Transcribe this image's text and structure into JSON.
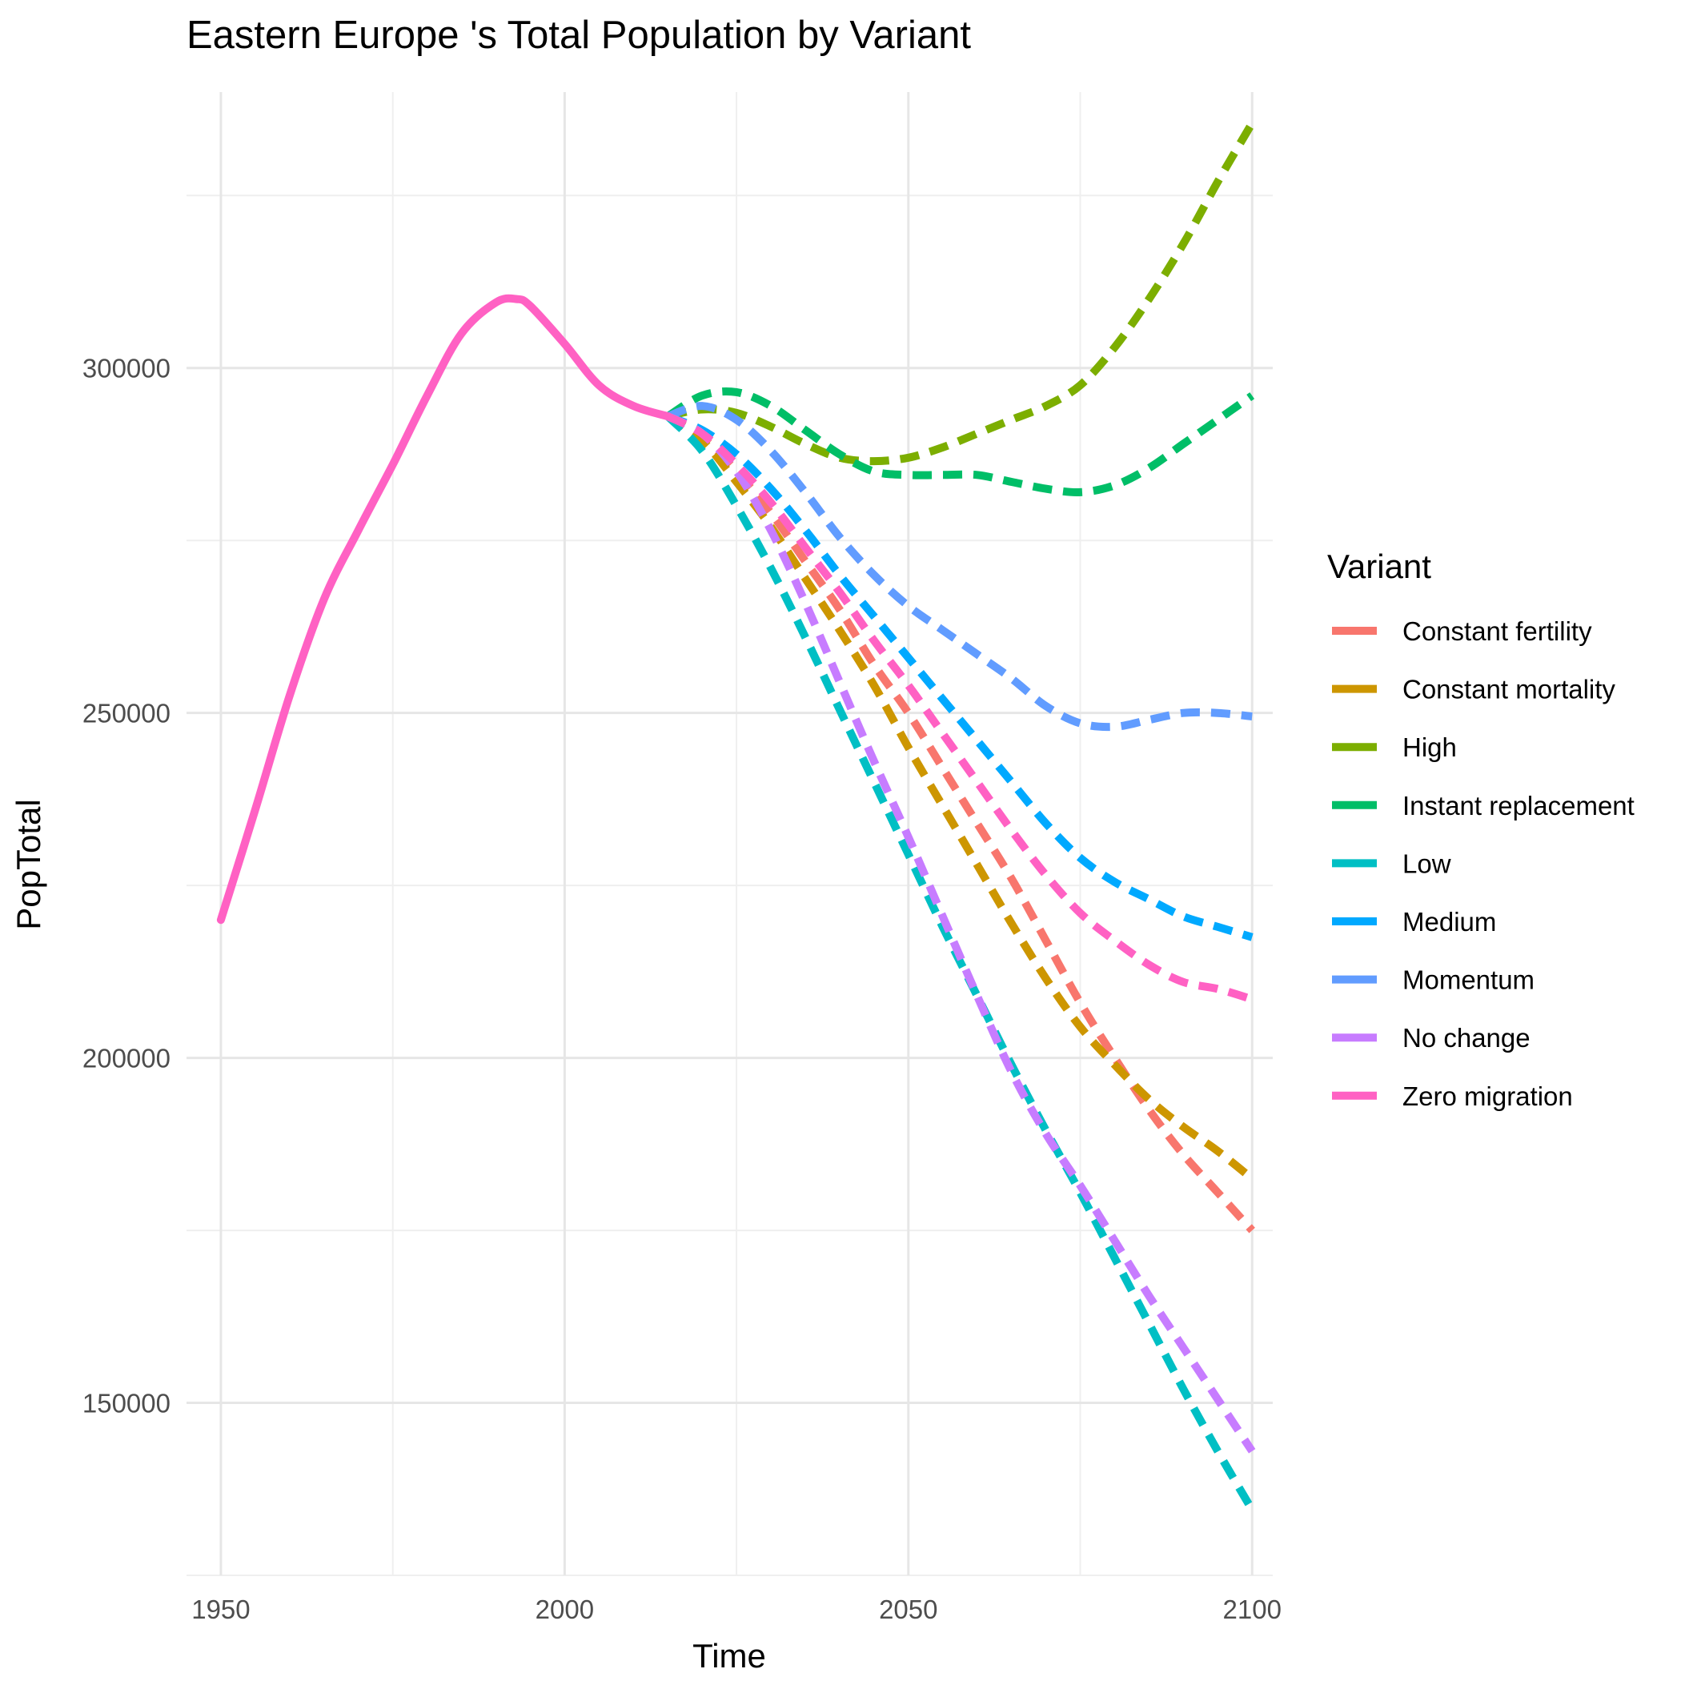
{
  "chart_data": {
    "type": "line",
    "title": "Eastern Europe 's Total Population by Variant",
    "xlabel": "Time",
    "ylabel": "PopTotal",
    "xlim": [
      1945,
      2103
    ],
    "ylim": [
      125000,
      340000
    ],
    "x_ticks": [
      1950,
      2000,
      2050,
      2100
    ],
    "x_tick_labels": [
      "1950",
      "2000",
      "2050",
      "2100"
    ],
    "y_ticks": [
      150000,
      200000,
      250000,
      300000
    ],
    "y_tick_labels": [
      "150000",
      "200000",
      "250000",
      "300000"
    ],
    "x_minor_ticks": [
      1975,
      2025,
      2075
    ],
    "y_minor_ticks": [
      125000,
      175000,
      225000,
      275000,
      325000
    ],
    "grid": true,
    "legend": {
      "title": "Variant",
      "position": "right"
    },
    "series": [
      {
        "name": "Constant fertility",
        "color": "#F8766D",
        "dash": "dashed",
        "x": [
          2015,
          2020,
          2025,
          2030,
          2035,
          2040,
          2045,
          2050,
          2055,
          2060,
          2065,
          2070,
          2075,
          2080,
          2085,
          2090,
          2095,
          2100
        ],
        "y": [
          293000,
          290000,
          285000,
          279000,
          272000,
          265000,
          257000,
          250000,
          242000,
          234000,
          226000,
          217000,
          208000,
          200000,
          192500,
          186000,
          180500,
          175000
        ]
      },
      {
        "name": "Constant mortality",
        "color": "#CD9600",
        "dash": "dashed",
        "x": [
          2015,
          2020,
          2025,
          2030,
          2035,
          2040,
          2045,
          2050,
          2055,
          2060,
          2065,
          2070,
          2075,
          2080,
          2085,
          2090,
          2095,
          2100
        ],
        "y": [
          293000,
          289500,
          283500,
          277000,
          269500,
          262000,
          254000,
          245000,
          236500,
          228000,
          219500,
          211500,
          204500,
          199000,
          194000,
          190000,
          186500,
          182500
        ]
      },
      {
        "name": "High",
        "color": "#7CAE00",
        "dash": "dashed",
        "x": [
          2015,
          2020,
          2025,
          2030,
          2035,
          2040,
          2045,
          2050,
          2055,
          2060,
          2065,
          2070,
          2075,
          2080,
          2085,
          2090,
          2095,
          2100
        ],
        "y": [
          293000,
          294000,
          293500,
          291500,
          289000,
          287000,
          286500,
          287000,
          288500,
          290500,
          292500,
          294500,
          297500,
          303000,
          310000,
          318000,
          327000,
          335500
        ]
      },
      {
        "name": "Instant replacement",
        "color": "#00BE67",
        "dash": "dashed",
        "x": [
          2015,
          2020,
          2025,
          2030,
          2035,
          2040,
          2045,
          2050,
          2055,
          2060,
          2065,
          2070,
          2075,
          2080,
          2085,
          2090,
          2095,
          2100
        ],
        "y": [
          293000,
          296000,
          296500,
          294500,
          291000,
          287500,
          285000,
          284500,
          284500,
          284500,
          283500,
          282500,
          282000,
          283000,
          285500,
          289000,
          292500,
          296000
        ]
      },
      {
        "name": "Low",
        "color": "#00BFC4",
        "dash": "dashed",
        "x": [
          2015,
          2020,
          2025,
          2030,
          2035,
          2040,
          2045,
          2050,
          2055,
          2060,
          2065,
          2070,
          2075,
          2080,
          2085,
          2090,
          2095,
          2100
        ],
        "y": [
          293000,
          288000,
          280000,
          271000,
          261000,
          250500,
          240000,
          229500,
          219000,
          209000,
          199000,
          189500,
          180500,
          171000,
          161500,
          152000,
          143000,
          134500
        ]
      },
      {
        "name": "Medium",
        "color": "#00A9FF",
        "dash": "dashed",
        "x": [
          2015,
          2020,
          2025,
          2030,
          2035,
          2040,
          2045,
          2050,
          2055,
          2060,
          2065,
          2070,
          2075,
          2080,
          2085,
          2090,
          2095,
          2100
        ],
        "y": [
          293000,
          291000,
          287500,
          282500,
          276500,
          270000,
          264000,
          258000,
          252000,
          246000,
          240000,
          234000,
          229000,
          225500,
          223000,
          220500,
          219000,
          217500
        ]
      },
      {
        "name": "Momentum",
        "color": "#619CFF",
        "dash": "dashed",
        "x": [
          2015,
          2020,
          2025,
          2030,
          2035,
          2040,
          2045,
          2050,
          2055,
          2060,
          2065,
          2070,
          2075,
          2080,
          2085,
          2090,
          2095,
          2100
        ],
        "y": [
          293000,
          294500,
          292500,
          288000,
          282000,
          275500,
          270000,
          265500,
          262000,
          258500,
          255000,
          251000,
          248500,
          248000,
          249000,
          250000,
          250000,
          249500
        ]
      },
      {
        "name": "No change",
        "color": "#C77CFF",
        "dash": "dashed",
        "x": [
          2015,
          2020,
          2025,
          2030,
          2035,
          2040,
          2045,
          2050,
          2055,
          2060,
          2065,
          2070,
          2075,
          2080,
          2085,
          2090,
          2095,
          2100
        ],
        "y": [
          293000,
          290500,
          285000,
          276500,
          266000,
          254500,
          243000,
          232000,
          220500,
          209000,
          198000,
          189000,
          181500,
          173500,
          165500,
          158000,
          150500,
          143000
        ]
      },
      {
        "name": "Zero migration",
        "color": "#FF61C3",
        "dash": "solid-then-dashed",
        "x": [
          1950,
          1955,
          1960,
          1965,
          1970,
          1975,
          1980,
          1985,
          1990,
          1993,
          1995,
          2000,
          2005,
          2010,
          2015,
          2020,
          2025,
          2030,
          2035,
          2040,
          2045,
          2050,
          2055,
          2060,
          2065,
          2070,
          2075,
          2080,
          2085,
          2090,
          2095,
          2100
        ],
        "y": [
          220000,
          236000,
          252500,
          266500,
          276500,
          286000,
          296000,
          305000,
          309500,
          310000,
          309000,
          303500,
          297500,
          294500,
          293000,
          290500,
          286000,
          280500,
          274000,
          267500,
          260500,
          254000,
          247000,
          240000,
          233000,
          226500,
          221000,
          217000,
          213500,
          211000,
          210000,
          208500
        ]
      }
    ]
  }
}
